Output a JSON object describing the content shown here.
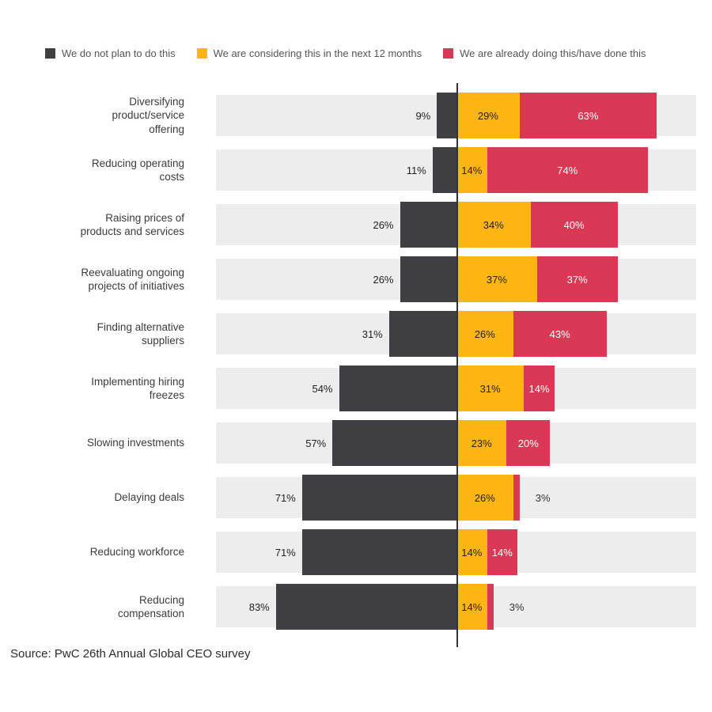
{
  "chart_data": {
    "type": "bar",
    "variant": "diverging-stacked-horizontal",
    "unit": "%",
    "legend_position": "top",
    "center_axis": true,
    "grid": false,
    "track_color": "#EDEDED",
    "categories": [
      "Diversifying\nproduct/service\noffering",
      "Reducing operating\ncosts",
      "Raising prices of\nproducts and services",
      "Reevaluating ongoing\nprojects of initiatives",
      "Finding alternative\nsuppliers",
      "Implementing hiring\nfreezes",
      "Slowing investments",
      "Delaying deals",
      "Reducing workforce",
      "Reducing\ncompensation"
    ],
    "series": [
      {
        "name": "We do not plan to do this",
        "side": "left",
        "color": "#404042",
        "values": [
          9,
          11,
          26,
          26,
          31,
          54,
          57,
          71,
          71,
          83
        ]
      },
      {
        "name": "We are considering this in the next 12 months",
        "side": "right",
        "color": "#FFB612",
        "values": [
          29,
          14,
          34,
          37,
          26,
          31,
          23,
          26,
          14,
          14
        ]
      },
      {
        "name": "We are already doing this/have done this",
        "side": "right",
        "color": "#D93954",
        "values": [
          63,
          74,
          40,
          37,
          43,
          14,
          20,
          3,
          14,
          3
        ]
      }
    ]
  },
  "source": {
    "text": "Source: PwC 26th Annual Global CEO survey"
  }
}
